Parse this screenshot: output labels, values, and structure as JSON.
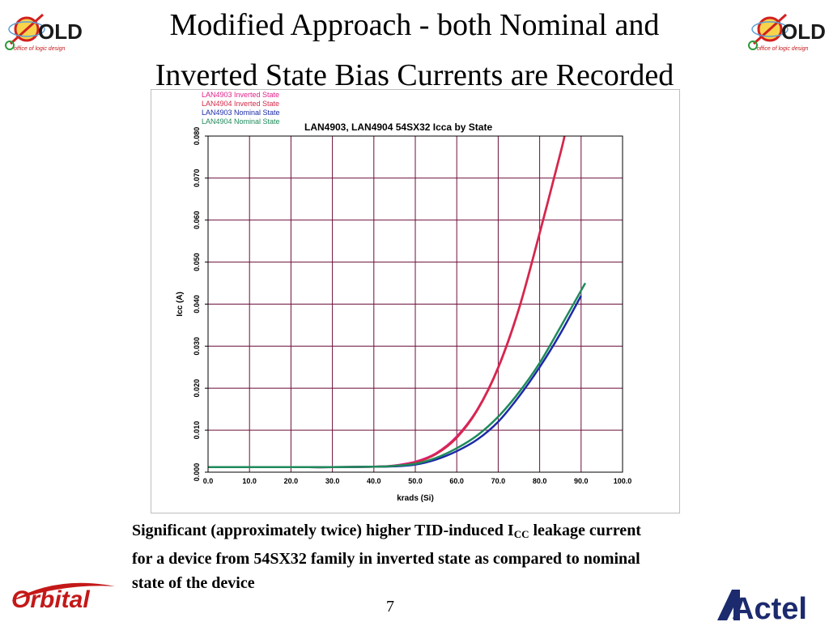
{
  "slide": {
    "title_line1": "Modified Approach - both Nominal and",
    "title_line2": "Inverted State Bias Currents are Recorded",
    "caption_part1": "Significant (approximately twice) higher TID-induced I",
    "caption_sub": "CC",
    "caption_part2": "leakage current for a device from 54SX32 family in inverted state as compared to nominal state of the device",
    "page_number": "7"
  },
  "logos": {
    "old_text": "OLD",
    "old_subtitle": "office of logic design",
    "orbital_text": "Orbital",
    "actel_text": "Actel"
  },
  "colors": {
    "inverted_4903": "#e0208a",
    "inverted_4904": "#d42848",
    "nominal_4903": "#1c2aa8",
    "nominal_4904": "#1e8a5a",
    "grid": "#6b0f3a"
  },
  "chart_data": {
    "type": "line",
    "title": "LAN4903, LAN4904 54SX32 Icca by State",
    "xlabel": "krads (Si)",
    "ylabel": "Icc (A)",
    "xlim": [
      0,
      100
    ],
    "ylim": [
      0,
      0.08
    ],
    "xticks": [
      "0.0",
      "10.0",
      "20.0",
      "30.0",
      "40.0",
      "50.0",
      "60.0",
      "70.0",
      "80.0",
      "90.0",
      "100.0"
    ],
    "yticks": [
      "0.000",
      "0.010",
      "0.020",
      "0.030",
      "0.040",
      "0.050",
      "0.060",
      "0.070",
      "0.080"
    ],
    "grid": true,
    "legend_position": "top-left",
    "series": [
      {
        "name": "LAN4903 Inverted State",
        "color": "#e0208a",
        "x": [
          0,
          20,
          30,
          40,
          45,
          50,
          55,
          60,
          65,
          70,
          75,
          80,
          85,
          86
        ],
        "y": [
          0.0012,
          0.0012,
          0.0012,
          0.0013,
          0.0016,
          0.0025,
          0.0045,
          0.0085,
          0.015,
          0.025,
          0.039,
          0.057,
          0.076,
          0.08
        ]
      },
      {
        "name": "LAN4904 Inverted State",
        "color": "#d42848",
        "x": [
          0,
          20,
          30,
          40,
          45,
          50,
          55,
          60,
          65,
          70,
          75,
          80,
          85,
          86
        ],
        "y": [
          0.0012,
          0.0012,
          0.0012,
          0.0013,
          0.0015,
          0.0023,
          0.0043,
          0.0082,
          0.0148,
          0.0248,
          0.0388,
          0.0568,
          0.0758,
          0.08
        ]
      },
      {
        "name": "LAN4903 Nominal State",
        "color": "#1c2aa8",
        "x": [
          0,
          20,
          30,
          40,
          45,
          50,
          55,
          60,
          65,
          70,
          75,
          80,
          85,
          90
        ],
        "y": [
          0.0012,
          0.0012,
          0.0012,
          0.0013,
          0.0014,
          0.0018,
          0.003,
          0.005,
          0.0078,
          0.012,
          0.018,
          0.025,
          0.033,
          0.042
        ]
      },
      {
        "name": "LAN4904 Nominal State",
        "color": "#1e8a5a",
        "x": [
          0,
          20,
          30,
          40,
          45,
          50,
          55,
          60,
          65,
          70,
          75,
          80,
          85,
          91
        ],
        "y": [
          0.0012,
          0.0012,
          0.0012,
          0.0013,
          0.0015,
          0.002,
          0.0034,
          0.0057,
          0.0088,
          0.0132,
          0.019,
          0.026,
          0.0345,
          0.045
        ]
      }
    ]
  }
}
